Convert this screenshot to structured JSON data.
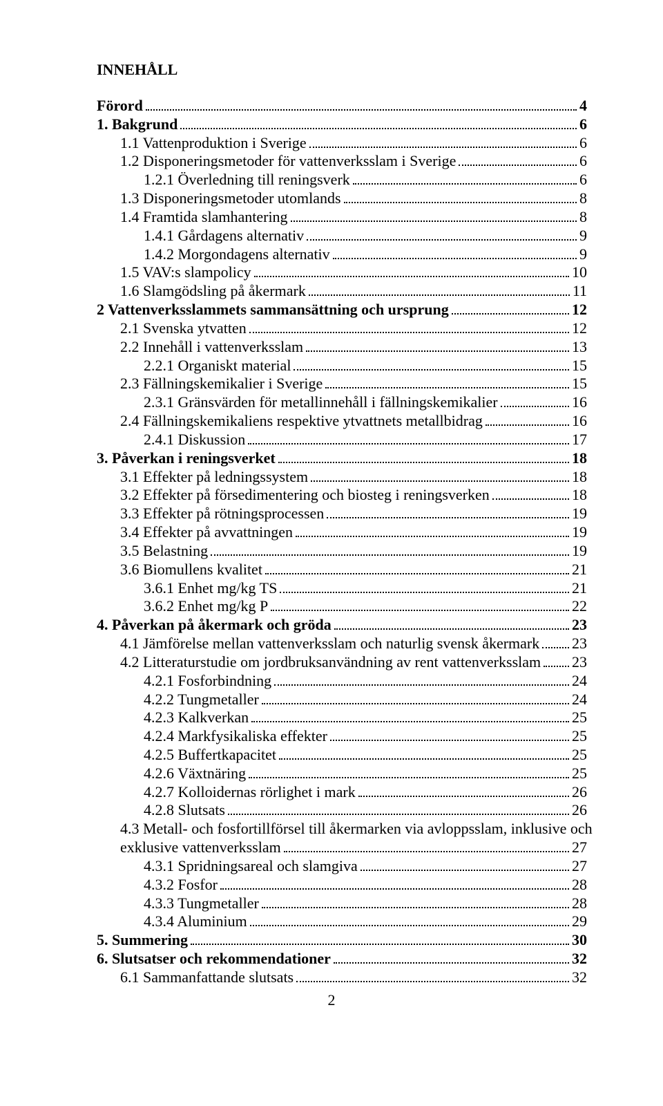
{
  "title": "INNEHÅLL",
  "page_number": "2",
  "entries": [
    {
      "indent": 0,
      "bold": true,
      "label": "Förord",
      "page": "4"
    },
    {
      "indent": 0,
      "bold": true,
      "label": "1. Bakgrund",
      "page": "6"
    },
    {
      "indent": 1,
      "bold": false,
      "label": "1.1 Vattenproduktion i Sverige",
      "page": "6"
    },
    {
      "indent": 1,
      "bold": false,
      "label": "1.2 Disponeringsmetoder för vattenverksslam i Sverige",
      "page": "6"
    },
    {
      "indent": 2,
      "bold": false,
      "label": "1.2.1 Överledning till reningsverk",
      "page": "6"
    },
    {
      "indent": 1,
      "bold": false,
      "label": "1.3 Disponeringsmetoder utomlands",
      "page": "8"
    },
    {
      "indent": 1,
      "bold": false,
      "label": "1.4 Framtida slamhantering",
      "page": "8"
    },
    {
      "indent": 2,
      "bold": false,
      "label": "1.4.1 Gårdagens alternativ",
      "page": "9"
    },
    {
      "indent": 2,
      "bold": false,
      "label": "1.4.2 Morgondagens alternativ",
      "page": "9"
    },
    {
      "indent": 1,
      "bold": false,
      "label": "1.5 VAV:s slampolicy",
      "page": "10"
    },
    {
      "indent": 1,
      "bold": false,
      "label": "1.6 Slamgödsling på åkermark",
      "page": "11"
    },
    {
      "indent": 0,
      "bold": true,
      "label": "2 Vattenverksslammets sammansättning och ursprung",
      "page": "12"
    },
    {
      "indent": 1,
      "bold": false,
      "label": "2.1 Svenska ytvatten",
      "page": "12"
    },
    {
      "indent": 1,
      "bold": false,
      "label": "2.2 Innehåll i vattenverksslam",
      "page": "13"
    },
    {
      "indent": 2,
      "bold": false,
      "label": "2.2.1 Organiskt material",
      "page": "15"
    },
    {
      "indent": 1,
      "bold": false,
      "label": "2.3 Fällningskemikalier i Sverige",
      "page": "15"
    },
    {
      "indent": 2,
      "bold": false,
      "label": "2.3.1 Gränsvärden för metallinnehåll i fällningskemikalier",
      "page": "16"
    },
    {
      "indent": 1,
      "bold": false,
      "label": "2.4 Fällningskemikaliens respektive ytvattnets metallbidrag",
      "page": "16"
    },
    {
      "indent": 2,
      "bold": false,
      "label": "2.4.1 Diskussion",
      "page": "17"
    },
    {
      "indent": 0,
      "bold": true,
      "label": "3. Påverkan i reningsverket",
      "page": "18"
    },
    {
      "indent": 1,
      "bold": false,
      "label": "3.1 Effekter på ledningssystem",
      "page": "18"
    },
    {
      "indent": 1,
      "bold": false,
      "label": "3.2 Effekter på försedimentering och biosteg i reningsverken",
      "page": "18"
    },
    {
      "indent": 1,
      "bold": false,
      "label": "3.3 Effekter på rötningsprocessen",
      "page": "19"
    },
    {
      "indent": 1,
      "bold": false,
      "label": "3.4 Effekter på avvattningen",
      "page": "19"
    },
    {
      "indent": 1,
      "bold": false,
      "label": "3.5 Belastning",
      "page": "19"
    },
    {
      "indent": 1,
      "bold": false,
      "label": "3.6 Biomullens kvalitet",
      "page": "21"
    },
    {
      "indent": 2,
      "bold": false,
      "label": "3.6.1 Enhet mg/kg TS",
      "page": "21"
    },
    {
      "indent": 2,
      "bold": false,
      "label": "3.6.2 Enhet mg/kg P",
      "page": "22"
    },
    {
      "indent": 0,
      "bold": true,
      "label": "4. Påverkan på åkermark och gröda",
      "page": "23"
    },
    {
      "indent": 1,
      "bold": false,
      "label": "4.1 Jämförelse mellan vattenverksslam och naturlig svensk åkermark",
      "page": "23"
    },
    {
      "indent": 1,
      "bold": false,
      "label": "4.2 Litteraturstudie om jordbruksanvändning av rent vattenverksslam",
      "page": "23"
    },
    {
      "indent": 2,
      "bold": false,
      "label": "4.2.1 Fosforbindning",
      "page": "24"
    },
    {
      "indent": 2,
      "bold": false,
      "label": "4.2.2 Tungmetaller",
      "page": "24"
    },
    {
      "indent": 2,
      "bold": false,
      "label": "4.2.3 Kalkverkan",
      "page": "25"
    },
    {
      "indent": 2,
      "bold": false,
      "label": "4.2.4 Markfysikaliska effekter",
      "page": "25"
    },
    {
      "indent": 2,
      "bold": false,
      "label": "4.2.5 Buffertkapacitet",
      "page": "25"
    },
    {
      "indent": 2,
      "bold": false,
      "label": "4.2.6 Växtnäring",
      "page": "25"
    },
    {
      "indent": 2,
      "bold": false,
      "label": "4.2.7 Kolloidernas rörlighet i mark",
      "page": "26"
    },
    {
      "indent": 2,
      "bold": false,
      "label": "4.2.8 Slutsats",
      "page": "26"
    },
    {
      "indent": 1,
      "bold": false,
      "label": "4.3 Metall- och fosfortillförsel till åkermarken via avloppsslam, inklusive och exklusive vattenverksslam",
      "page": "27",
      "wrap": true
    },
    {
      "indent": 2,
      "bold": false,
      "label": "4.3.1 Spridningsareal och slamgiva",
      "page": "27"
    },
    {
      "indent": 2,
      "bold": false,
      "label": "4.3.2 Fosfor",
      "page": "28"
    },
    {
      "indent": 2,
      "bold": false,
      "label": "4.3.3 Tungmetaller",
      "page": "28"
    },
    {
      "indent": 2,
      "bold": false,
      "label": "4.3.4 Aluminium",
      "page": "29"
    },
    {
      "indent": 0,
      "bold": true,
      "label": "5. Summering",
      "page": "30"
    },
    {
      "indent": 0,
      "bold": true,
      "label": "6. Slutsatser och rekommendationer",
      "page": "32"
    },
    {
      "indent": 1,
      "bold": false,
      "label": "6.1 Sammanfattande slutsats",
      "page": "32"
    }
  ]
}
